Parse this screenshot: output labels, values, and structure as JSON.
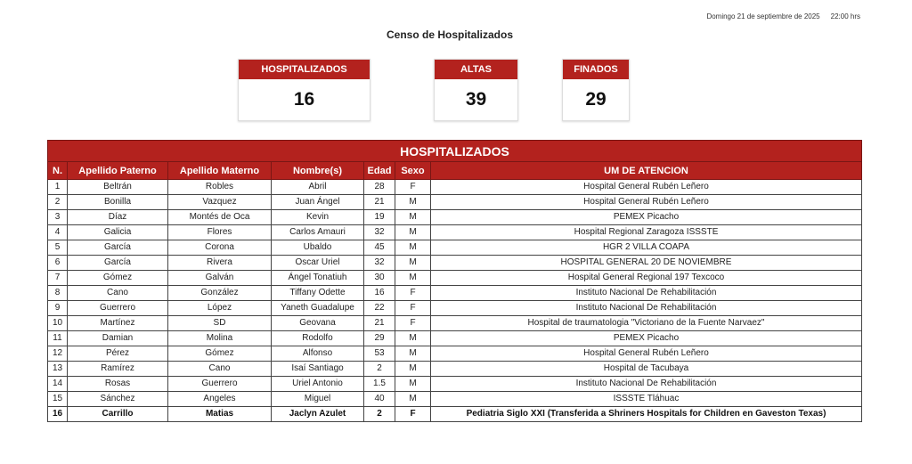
{
  "header": {
    "date": "Domingo 21 de septiembre de 2025",
    "time": "22:00 hrs",
    "title": "Censo de Hospitalizados"
  },
  "summary": [
    {
      "label": "HOSPITALIZADOS",
      "value": "16"
    },
    {
      "label": "ALTAS",
      "value": "39"
    },
    {
      "label": "FINADOS",
      "value": "29"
    }
  ],
  "accent_color": "#b3221e",
  "table": {
    "title": "HOSPITALIZADOS",
    "columns": [
      "N.",
      "Apellido Paterno",
      "Apellido Materno",
      "Nombre(s)",
      "Edad",
      "Sexo",
      "UM DE ATENCION"
    ],
    "rows": [
      [
        "1",
        "Beltrán",
        "Robles",
        "Abril",
        "28",
        "F",
        "Hospital General Rubén Leñero"
      ],
      [
        "2",
        "Bonilla",
        "Vazquez",
        "Juan Ángel",
        "21",
        "M",
        "Hospital General Rubén Leñero"
      ],
      [
        "3",
        "Díaz",
        "Montés de Oca",
        "Kevin",
        "19",
        "M",
        "PEMEX Picacho"
      ],
      [
        "4",
        "Galicia",
        "Flores",
        "Carlos Amauri",
        "32",
        "M",
        "Hospital Regional Zaragoza ISSSTE"
      ],
      [
        "5",
        "García",
        "Corona",
        "Ubaldo",
        "45",
        "M",
        "HGR 2 VILLA COAPA"
      ],
      [
        "6",
        "García",
        "Rivera",
        "Oscar Uriel",
        "32",
        "M",
        "HOSPITAL GENERAL 20 DE NOVIEMBRE"
      ],
      [
        "7",
        "Gómez",
        "Galván",
        "Ángel Tonatiuh",
        "30",
        "M",
        "Hospital General Regional 197 Texcoco"
      ],
      [
        "8",
        "Cano",
        "González",
        "Tiffany Odette",
        "16",
        "F",
        "Instituto Nacional De Rehabilitación"
      ],
      [
        "9",
        "Guerrero",
        "López",
        "Yaneth Guadalupe",
        "22",
        "F",
        "Instituto Nacional De Rehabilitación"
      ],
      [
        "10",
        "Martínez",
        "SD",
        "Geovana",
        "21",
        "F",
        "Hospital de traumatologia \"Victoriano de la Fuente Narvaez\""
      ],
      [
        "11",
        "Damian",
        "Molina",
        "Rodolfo",
        "29",
        "M",
        "PEMEX Picacho"
      ],
      [
        "12",
        "Pérez",
        "Gómez",
        "Alfonso",
        "53",
        "M",
        "Hospital General Rubén Leñero"
      ],
      [
        "13",
        "Ramírez",
        "Cano",
        "Isaí Santiago",
        "2",
        "M",
        "Hospital de Tacubaya"
      ],
      [
        "14",
        "Rosas",
        "Guerrero",
        "Uriel Antonio",
        "1.5",
        "M",
        "Instituto Nacional De Rehabilitación"
      ],
      [
        "15",
        "Sánchez",
        "Angeles",
        "Miguel",
        "40",
        "M",
        "ISSSTE Tláhuac"
      ],
      [
        "16",
        "Carrillo",
        "Matias",
        "Jaclyn Azulet",
        "2",
        "F",
        "Pediatria Siglo XXI (Transferida a Shriners Hospitals for Children en Gaveston Texas)"
      ]
    ],
    "bold_rows": [
      16
    ]
  }
}
